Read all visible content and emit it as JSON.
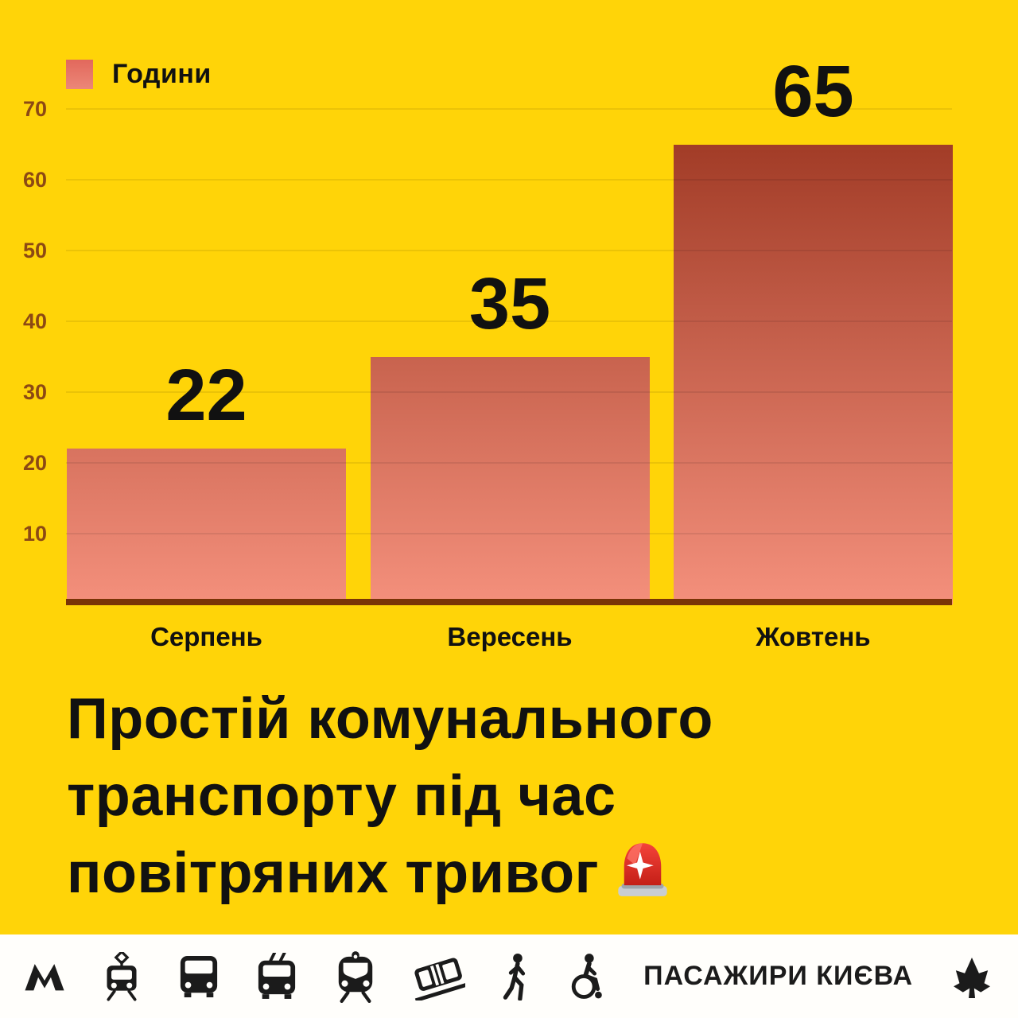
{
  "chart_data": {
    "type": "bar",
    "categories": [
      "Серпень",
      "Вересень",
      "Жовтень"
    ],
    "values": [
      22,
      35,
      65
    ],
    "series_label": "Години",
    "title": "Простій комунального транспорту під час повітряних тривог",
    "xlabel": "",
    "ylabel": "",
    "ylim": [
      0,
      70
    ],
    "yticks": [
      10,
      20,
      30,
      40,
      50,
      60,
      70
    ],
    "grid": true,
    "legend_position": "top-left",
    "bar_labels_shown": true
  },
  "legend": {
    "label": "Години"
  },
  "title": {
    "line1": "Простій комунального",
    "line2": "транспорту під час",
    "line3": "повітряних тривог",
    "emoji": "rotating-light"
  },
  "footer": {
    "brand_text": "ПАСАЖИРИ КИЄВА",
    "icons": [
      "metro",
      "tram",
      "bus",
      "trolleybus",
      "train",
      "funicular",
      "pedestrian",
      "wheelchair"
    ],
    "logo": "chestnut-leaf"
  },
  "colors": {
    "background": "#FFD408",
    "footer_background": "#FFFEFB",
    "bar_gradient_top": "#9C3520",
    "bar_gradient_bottom": "#F4907C",
    "legend_swatch_top": "#E2685C",
    "legend_swatch_bottom": "#EC8778",
    "axis_line": "#7A3406",
    "tick_text": "#8C4914",
    "text": "#111111",
    "siren_red": "#E0352B",
    "siren_base": "#C9CDD2"
  }
}
